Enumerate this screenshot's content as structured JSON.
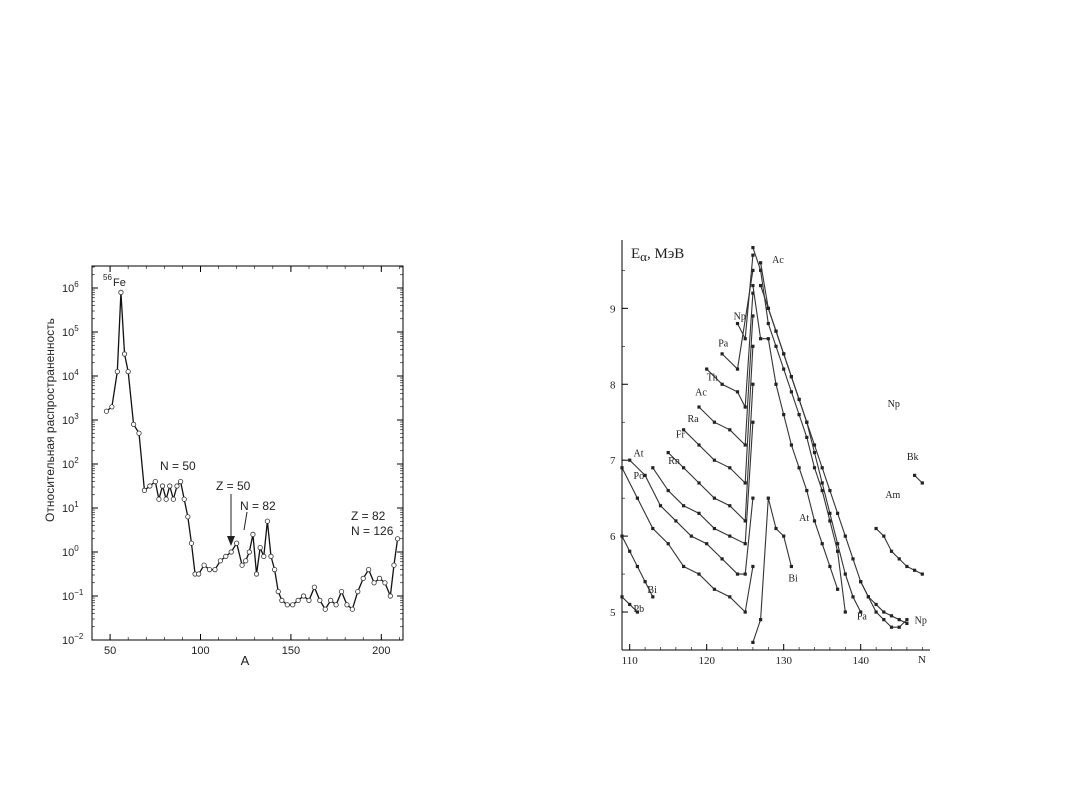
{
  "chart_data": [
    {
      "type": "line",
      "ylabel": "Относительная распространенность",
      "xlabel": "A",
      "xlim": [
        40,
        212
      ],
      "ylim_log10": [
        -2,
        6.5
      ],
      "y_scale": "log",
      "x_ticks": [
        "50",
        "100",
        "150",
        "200"
      ],
      "y_ticks": [
        {
          "base": "10",
          "exp": "6"
        },
        {
          "base": "10",
          "exp": "5"
        },
        {
          "base": "10",
          "exp": "4"
        },
        {
          "base": "10",
          "exp": "3"
        },
        {
          "base": "10",
          "exp": "2"
        },
        {
          "base": "10",
          "exp": "1"
        },
        {
          "base": "10",
          "exp": "0"
        },
        {
          "base": "10",
          "exp": "−1"
        },
        {
          "base": "10",
          "exp": "−2"
        }
      ],
      "annotations": {
        "fe_mass": "56",
        "fe_symbol": "Fe",
        "n50": "N = 50",
        "z50": "Z = 50",
        "n82": "N = 82",
        "z82": "Z = 82",
        "n126": "N = 126"
      },
      "series": [
        {
          "x": [
            48,
            51,
            54,
            56,
            58,
            60,
            63,
            66,
            69,
            72,
            75,
            77,
            79,
            81,
            83,
            85,
            87,
            89,
            91,
            93,
            95,
            97,
            99,
            102,
            105,
            108,
            111,
            114,
            117,
            120,
            123,
            125,
            127,
            129,
            131,
            133,
            135,
            137,
            139,
            141,
            143,
            145,
            148,
            151,
            154,
            157,
            160,
            163,
            166,
            169,
            172,
            175,
            178,
            181,
            184,
            187,
            190,
            193,
            196,
            199,
            202,
            205,
            207,
            209
          ],
          "log_y": [
            3.2,
            3.3,
            4.1,
            5.9,
            4.5,
            4.1,
            2.9,
            2.7,
            1.4,
            1.5,
            1.6,
            1.2,
            1.5,
            1.2,
            1.5,
            1.2,
            1.5,
            1.6,
            1.2,
            0.8,
            0.2,
            -0.5,
            -0.5,
            -0.3,
            -0.4,
            -0.4,
            -0.2,
            -0.1,
            0.0,
            0.2,
            -0.3,
            -0.2,
            0.0,
            0.4,
            -0.5,
            0.1,
            -0.1,
            0.7,
            -0.1,
            -0.4,
            -0.9,
            -1.1,
            -1.2,
            -1.2,
            -1.1,
            -1.0,
            -1.1,
            -0.8,
            -1.1,
            -1.3,
            -1.1,
            -1.2,
            -0.9,
            -1.2,
            -1.3,
            -0.9,
            -0.6,
            -0.4,
            -0.7,
            -0.6,
            -0.7,
            -1.0,
            -0.3,
            0.3
          ]
        }
      ]
    },
    {
      "type": "line",
      "ylabel_main": "E",
      "ylabel_sub": "α",
      "ylabel_unit": ", МэВ",
      "xlabel": "N",
      "xlim": [
        109,
        149
      ],
      "ylim": [
        4.5,
        9.9
      ],
      "x_ticks": [
        110,
        120,
        130,
        140
      ],
      "y_ticks": [
        5,
        6,
        7,
        8,
        9
      ],
      "series": [
        {
          "name": "Pb",
          "label_at": [
            110.5,
            5.0
          ],
          "x": [
            109,
            110,
            111
          ],
          "y": [
            5.2,
            5.1,
            5.0
          ]
        },
        {
          "name": "Bi",
          "label_at": [
            112.3,
            5.25
          ],
          "x": [
            109,
            110,
            111,
            112,
            113
          ],
          "y": [
            6.0,
            5.8,
            5.6,
            5.4,
            5.2
          ]
        },
        {
          "name": "Po",
          "label_at": [
            110.5,
            6.75
          ],
          "x": [
            109,
            111,
            113,
            115,
            117,
            119,
            121,
            123,
            125,
            126
          ],
          "y": [
            6.9,
            6.5,
            6.1,
            5.9,
            5.6,
            5.5,
            5.3,
            5.2,
            5.0,
            5.6
          ]
        },
        {
          "name": "At",
          "label_at": [
            110.5,
            7.05
          ],
          "x": [
            110,
            112,
            114,
            116,
            118,
            120,
            122,
            124,
            125,
            126
          ],
          "y": [
            7.0,
            6.8,
            6.4,
            6.2,
            6.0,
            5.9,
            5.7,
            5.5,
            5.5,
            6.5
          ]
        },
        {
          "name": "Rn",
          "label_at": [
            115.0,
            6.95
          ],
          "x": [
            113,
            115,
            117,
            119,
            121,
            123,
            125,
            126
          ],
          "y": [
            6.9,
            6.6,
            6.4,
            6.3,
            6.1,
            6.0,
            5.9,
            7.5
          ]
        },
        {
          "name": "Fr",
          "label_at": [
            116.0,
            7.3
          ],
          "x": [
            115,
            117,
            119,
            121,
            123,
            125,
            126
          ],
          "y": [
            7.1,
            6.9,
            6.7,
            6.5,
            6.4,
            6.2,
            8.0
          ]
        },
        {
          "name": "Ra",
          "label_at": [
            117.5,
            7.5
          ],
          "x": [
            117,
            119,
            121,
            123,
            125,
            126
          ],
          "y": [
            7.4,
            7.2,
            7.0,
            6.9,
            6.7,
            8.5
          ]
        },
        {
          "name": "Ac",
          "label_at": [
            118.5,
            7.85
          ],
          "x": [
            119,
            121,
            123,
            125,
            126
          ],
          "y": [
            7.7,
            7.5,
            7.4,
            7.2,
            8.9
          ]
        },
        {
          "name": "Th",
          "label_at": [
            120.0,
            8.05
          ],
          "x": [
            120,
            122,
            124,
            125,
            126
          ],
          "y": [
            8.2,
            8.0,
            7.9,
            7.7,
            9.2
          ]
        },
        {
          "name": "Pa",
          "label_at": [
            121.5,
            8.5
          ],
          "x": [
            122,
            124,
            126
          ],
          "y": [
            8.4,
            8.2,
            9.5
          ]
        },
        {
          "name": "Np",
          "label_at": [
            123.5,
            8.85
          ],
          "x": [
            124,
            125,
            126
          ],
          "y": [
            8.8,
            8.6,
            9.7
          ]
        },
        {
          "name": "Bi",
          "label_at": [
            130.6,
            5.4
          ],
          "x": [
            126,
            127,
            128,
            129,
            130,
            131
          ],
          "y": [
            4.6,
            4.9,
            6.5,
            6.1,
            6.0,
            5.6
          ]
        },
        {
          "name": "At",
          "label_at": [
            132.0,
            6.2
          ],
          "x": [
            126,
            127,
            128,
            129,
            130,
            131,
            132,
            133,
            134,
            135,
            136,
            137
          ],
          "y": [
            9.3,
            8.6,
            8.6,
            8.0,
            7.6,
            7.2,
            6.9,
            6.6,
            6.2,
            5.9,
            5.6,
            5.3
          ]
        },
        {
          "name": "Pa",
          "label_at": [
            139.5,
            4.9
          ],
          "x": [
            126,
            127,
            128,
            129,
            130,
            131,
            132,
            133,
            134,
            135,
            136,
            137,
            138
          ],
          "y": [
            9.8,
            9.5,
            8.8,
            8.5,
            8.2,
            7.9,
            7.6,
            7.3,
            6.9,
            6.6,
            6.2,
            5.8,
            5.0
          ]
        },
        {
          "name": "Ac",
          "label_at": [
            128.5,
            9.6
          ],
          "x": [
            127,
            128,
            129,
            130,
            131,
            132,
            133,
            134,
            135,
            136,
            137,
            138,
            139,
            140
          ],
          "y": [
            9.6,
            9.0,
            8.7,
            8.4,
            8.1,
            7.8,
            7.5,
            7.1,
            6.7,
            6.3,
            5.9,
            5.5,
            5.2,
            5.0
          ]
        },
        {
          "name": "Np",
          "label_at": [
            143.5,
            7.7
          ],
          "x": [
            127,
            128,
            129,
            130,
            131,
            132,
            133,
            134,
            135,
            136,
            137,
            138,
            139,
            140,
            141,
            142,
            143,
            144,
            145,
            146
          ],
          "y": [
            9.3,
            9.0,
            8.7,
            8.4,
            8.1,
            7.8,
            7.5,
            7.2,
            6.9,
            6.6,
            6.3,
            6.0,
            5.7,
            5.4,
            5.2,
            5.0,
            4.9,
            4.8,
            4.8,
            4.9
          ]
        },
        {
          "name": "Np",
          "label_at": [
            147.0,
            4.85
          ],
          "x": [
            140,
            141,
            142,
            143,
            144,
            145,
            146
          ],
          "y": [
            5.4,
            5.2,
            5.1,
            5.0,
            4.95,
            4.9,
            4.85
          ]
        },
        {
          "name": "Am",
          "label_at": [
            143.2,
            6.5
          ],
          "x": [
            142,
            143,
            144,
            145,
            146,
            147,
            148
          ],
          "y": [
            6.1,
            6.0,
            5.8,
            5.7,
            5.6,
            5.55,
            5.5
          ]
        },
        {
          "name": "Bk",
          "label_at": [
            146.0,
            7.0
          ],
          "x": [
            147,
            148
          ],
          "y": [
            6.8,
            6.7
          ]
        }
      ]
    }
  ]
}
